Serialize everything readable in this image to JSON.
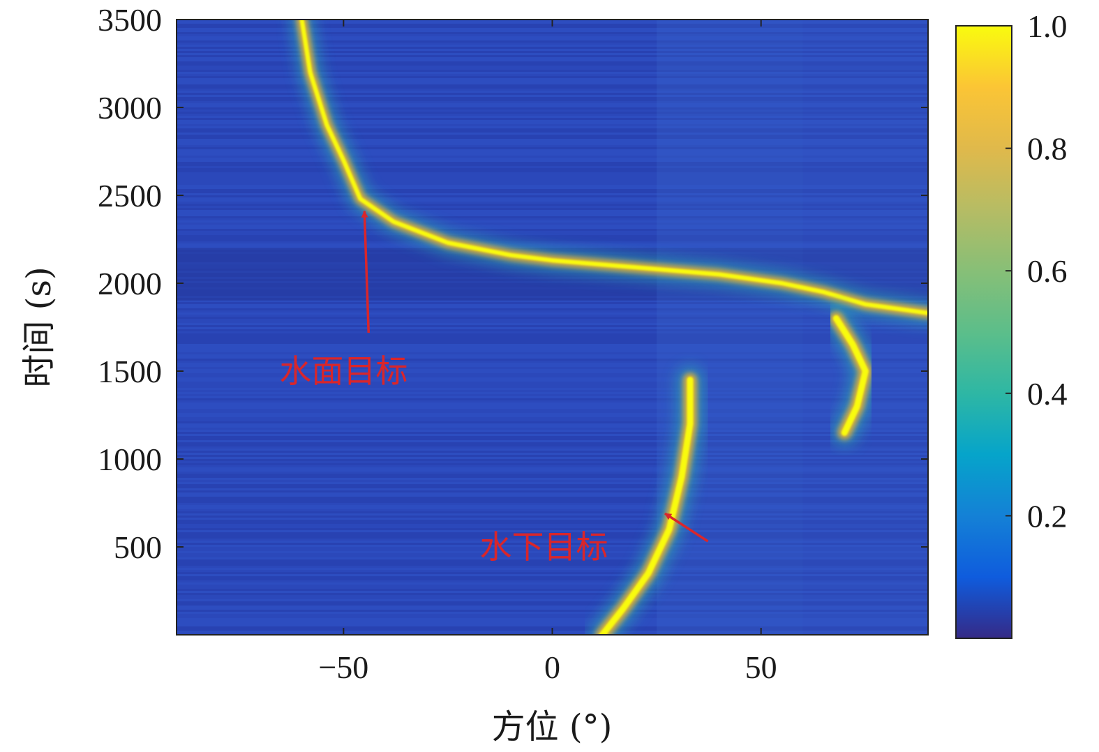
{
  "chart_data": {
    "type": "heatmap",
    "title": "",
    "xlabel": "方位 (°)",
    "ylabel": "时间 (s)",
    "xlim": [
      -90,
      90
    ],
    "ylim": [
      0,
      3500
    ],
    "x_ticks": [
      {
        "value": -50,
        "label": "−50"
      },
      {
        "value": 0,
        "label": "0"
      },
      {
        "value": 50,
        "label": "50"
      }
    ],
    "y_ticks": [
      {
        "value": 500,
        "label": "500"
      },
      {
        "value": 1000,
        "label": "1000"
      },
      {
        "value": 1500,
        "label": "1500"
      },
      {
        "value": 2000,
        "label": "2000"
      },
      {
        "value": 2500,
        "label": "2500"
      },
      {
        "value": 3000,
        "label": "3000"
      },
      {
        "value": 3500,
        "label": "3500"
      }
    ],
    "colorbar": {
      "colormap": "parula",
      "range": [
        0,
        1
      ],
      "ticks": [
        {
          "value": 0.2,
          "label": "0.2"
        },
        {
          "value": 0.4,
          "label": "0.4"
        },
        {
          "value": 0.6,
          "label": "0.6"
        },
        {
          "value": 0.8,
          "label": "0.8"
        },
        {
          "value": 1.0,
          "label": "1.0"
        }
      ]
    },
    "tracks": [
      {
        "label": "水面目标",
        "points": [
          [
            -60,
            3500
          ],
          [
            -58,
            3200
          ],
          [
            -54,
            2900
          ],
          [
            -50,
            2700
          ],
          [
            -46,
            2480
          ],
          [
            -38,
            2350
          ],
          [
            -25,
            2230
          ],
          [
            -10,
            2160
          ],
          [
            0,
            2130
          ],
          [
            20,
            2090
          ],
          [
            40,
            2050
          ],
          [
            55,
            2000
          ],
          [
            65,
            1950
          ],
          [
            75,
            1880
          ],
          [
            90,
            1830
          ]
        ]
      },
      {
        "label": "水下目标",
        "points": [
          [
            12,
            0
          ],
          [
            17,
            150
          ],
          [
            23,
            350
          ],
          [
            28,
            600
          ],
          [
            31,
            900
          ],
          [
            33,
            1200
          ],
          [
            33,
            1450
          ]
        ]
      },
      {
        "label": "",
        "points": [
          [
            68,
            1800
          ],
          [
            72,
            1650
          ],
          [
            75,
            1500
          ],
          [
            73,
            1300
          ],
          [
            70,
            1150
          ]
        ]
      }
    ],
    "annotations": [
      {
        "text": "水面目标",
        "text_at": [
          -50,
          1500
        ],
        "arrow_to": [
          -45,
          2410
        ]
      },
      {
        "text": "水下目标",
        "text_at": [
          -2,
          500
        ],
        "arrow_to": [
          27,
          690
        ]
      }
    ]
  }
}
